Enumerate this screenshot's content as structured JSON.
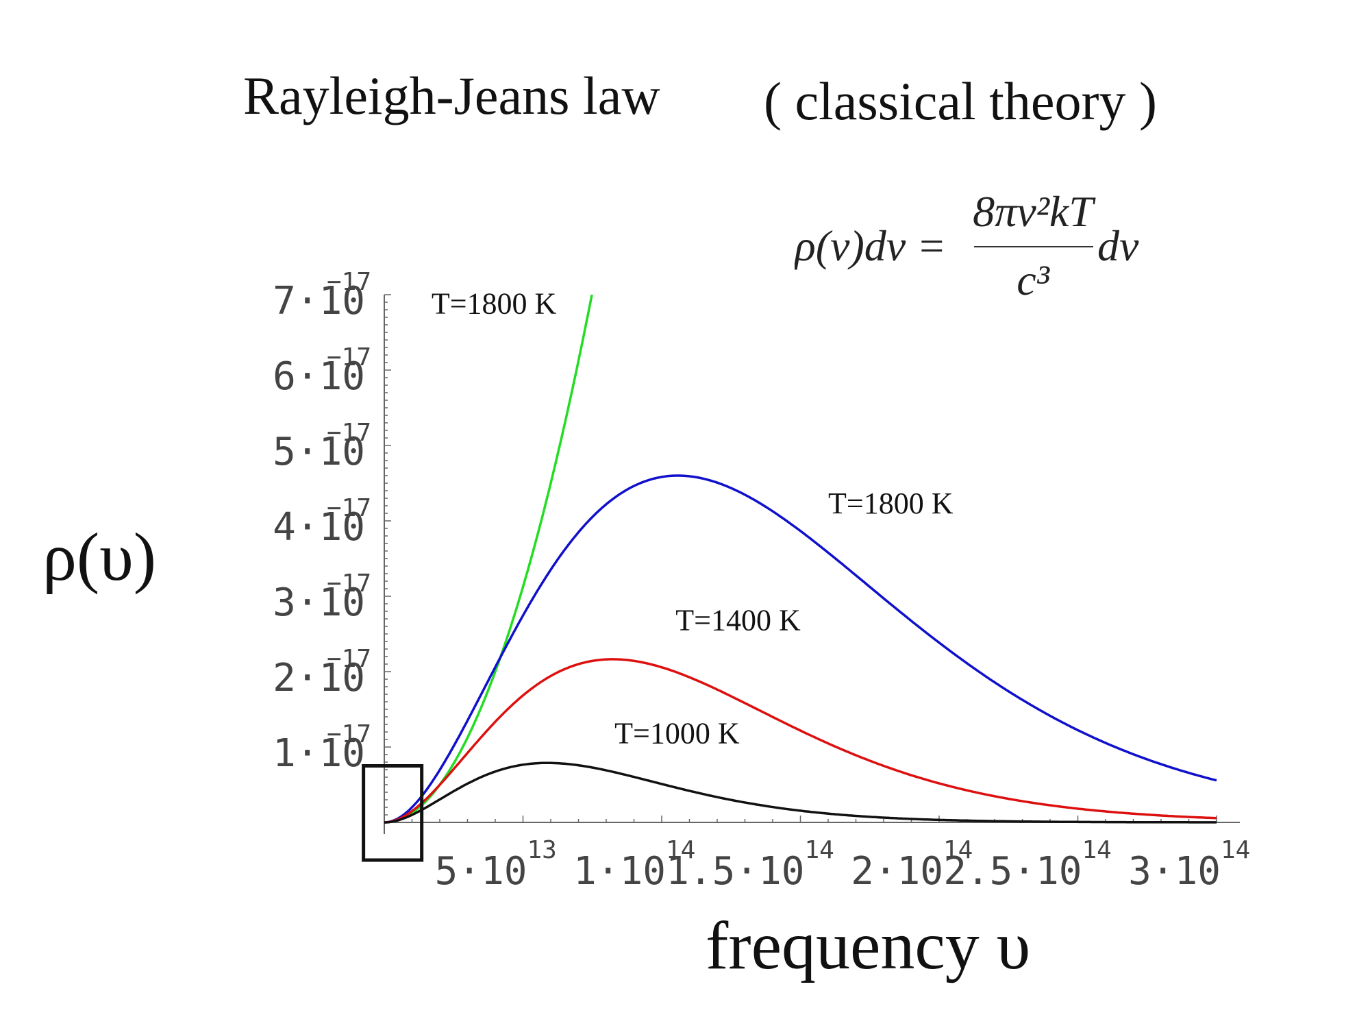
{
  "header": {
    "title": "Rayleigh-Jeans law",
    "subtitle": "( classical theory )"
  },
  "formula": {
    "lhs": "ρ(ν)dν =",
    "numerator": "8πν²kT",
    "denominator": "c³",
    "rhs_suffix": "dν"
  },
  "chart_data": {
    "type": "line",
    "xlabel": "frequency  υ",
    "ylabel": "ρ(υ)",
    "xlim": [
      0,
      300000000000000.0
    ],
    "ylim": [
      0,
      7e-17
    ],
    "x_ticks": [
      {
        "value": 50000000000000.0,
        "mantissa": "5·10",
        "exp": "13"
      },
      {
        "value": 100000000000000.0,
        "mantissa": "1·10",
        "exp": "14"
      },
      {
        "value": 150000000000000.0,
        "mantissa": "1.5·10",
        "exp": "14"
      },
      {
        "value": 200000000000000.0,
        "mantissa": "2·10",
        "exp": "14"
      },
      {
        "value": 250000000000000.0,
        "mantissa": "2.5·10",
        "exp": "14"
      },
      {
        "value": 300000000000000.0,
        "mantissa": "3·10",
        "exp": "14"
      }
    ],
    "y_ticks": [
      {
        "value": 1e-17,
        "mantissa": "1·10",
        "exp": "−17"
      },
      {
        "value": 2e-17,
        "mantissa": "2·10",
        "exp": "−17"
      },
      {
        "value": 3e-17,
        "mantissa": "3·10",
        "exp": "−17"
      },
      {
        "value": 4e-17,
        "mantissa": "4·10",
        "exp": "−17"
      },
      {
        "value": 5e-17,
        "mantissa": "5·10",
        "exp": "−17"
      },
      {
        "value": 6e-17,
        "mantissa": "6·10",
        "exp": "−17"
      },
      {
        "value": 7e-17,
        "mantissa": "7·10",
        "exp": "−17"
      }
    ],
    "series": [
      {
        "name": "T=1800 K",
        "color": "#22dd22",
        "kind": "rayleigh-jeans",
        "coef": 1.25e-44
      },
      {
        "name": "T=1800 K",
        "color": "#1010cc",
        "kind": "planck",
        "T": 1800
      },
      {
        "name": "T=1400 K",
        "color": "#dd1010",
        "kind": "planck",
        "T": 1400
      },
      {
        "name": "T=1000 K",
        "color": "#111111",
        "kind": "planck",
        "T": 1000
      }
    ],
    "annotations": [
      {
        "text": "T=1800 K",
        "x": 17000000000000.0,
        "y": 6.75e-17
      },
      {
        "text": "T=1800 K",
        "x": 160000000000000.0,
        "y": 4.1e-17
      },
      {
        "text": "T=1400 K",
        "x": 105000000000000.0,
        "y": 2.55e-17
      },
      {
        "text": "T=1000 K",
        "x": 83000000000000.0,
        "y": 1.05e-17
      }
    ],
    "highlight_box": {
      "x0": -7500000000000.0,
      "x1": 13500000000000.0,
      "y0": -5e-18,
      "y1": 7.5e-18
    }
  }
}
